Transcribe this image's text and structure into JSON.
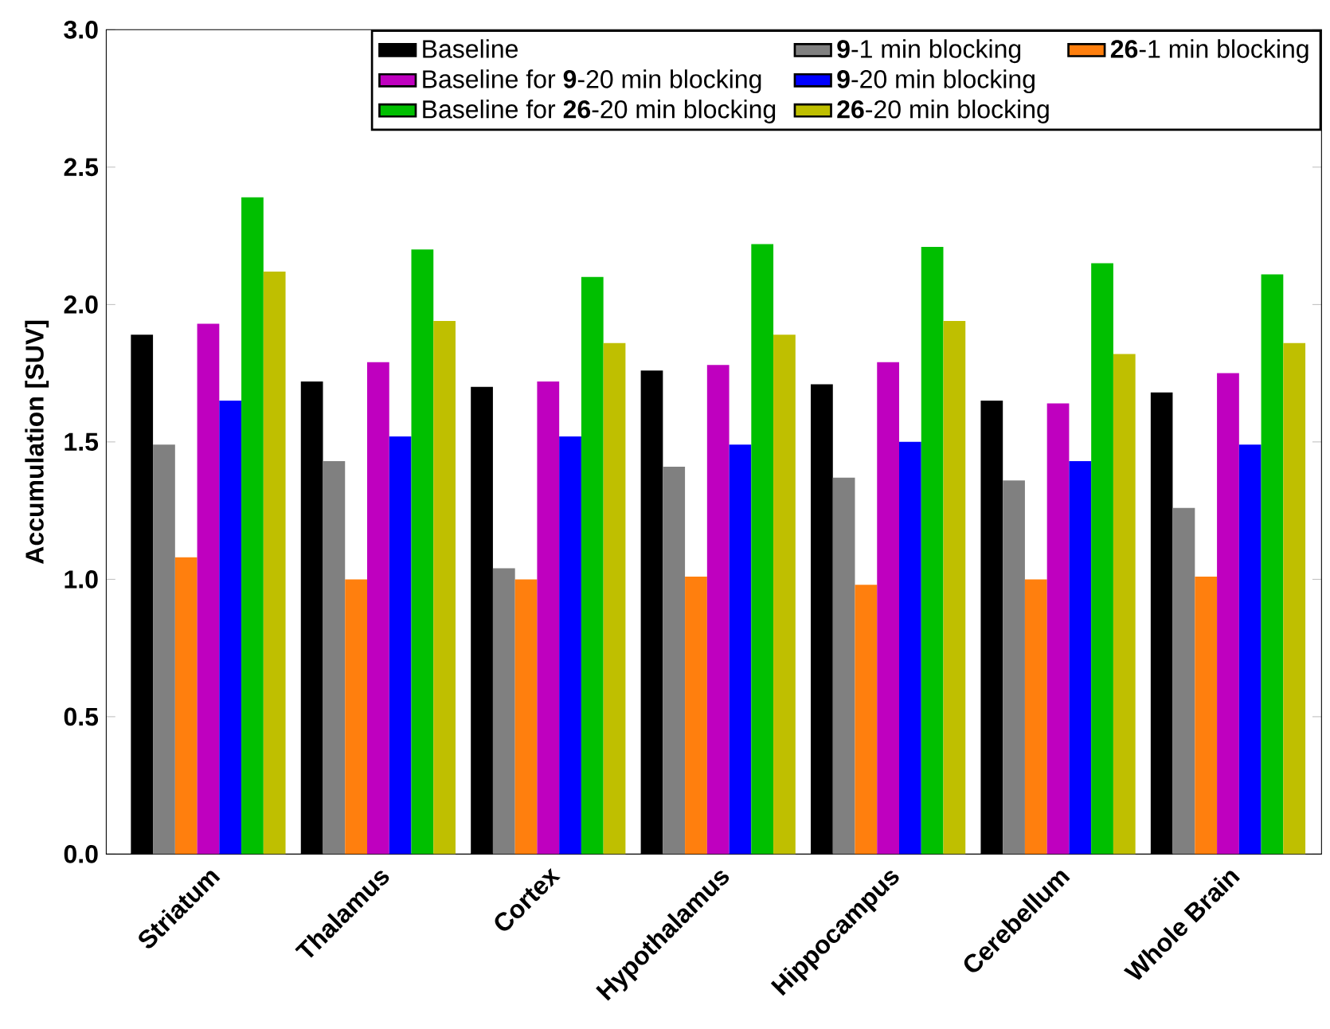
{
  "chart_data": {
    "type": "bar",
    "ylabel": "Accumulation [SUV]",
    "categories": [
      "Striatum",
      "Thalamus",
      "Cortex",
      "Hypothalamus",
      "Hippocampus",
      "Cerebellum",
      "Whole Brain"
    ],
    "series": [
      {
        "name": "Baseline",
        "color": "#000000",
        "values": [
          1.89,
          1.72,
          1.7,
          1.76,
          1.71,
          1.65,
          1.68
        ]
      },
      {
        "name": "**9**-1 min blocking",
        "color": "#808080",
        "values": [
          1.49,
          1.43,
          1.04,
          1.41,
          1.37,
          1.36,
          1.26
        ]
      },
      {
        "name": "**26**-1 min blocking",
        "color": "#ff7f0e",
        "values": [
          1.08,
          1.0,
          1.0,
          1.01,
          0.98,
          1.0,
          1.01
        ]
      },
      {
        "name": "Baseline for **9**-20 min blocking",
        "color": "#bf00bf",
        "values": [
          1.93,
          1.79,
          1.72,
          1.78,
          1.79,
          1.64,
          1.75
        ]
      },
      {
        "name": "**9**-20 min blocking",
        "color": "#0000ff",
        "values": [
          1.65,
          1.52,
          1.52,
          1.49,
          1.5,
          1.43,
          1.49
        ]
      },
      {
        "name": "Baseline for **26**-20 min blocking",
        "color": "#00bf00",
        "values": [
          2.39,
          2.2,
          2.1,
          2.22,
          2.21,
          2.15,
          2.11
        ]
      },
      {
        "name": "**26**-20 min blocking",
        "color": "#bfbf00",
        "values": [
          2.12,
          1.94,
          1.86,
          1.89,
          1.94,
          1.82,
          1.86
        ]
      }
    ],
    "ylim": [
      0,
      3
    ],
    "yticks": [
      {
        "value": 0,
        "label": "0.0"
      },
      0.5,
      {
        "value": 1,
        "label": "1.0"
      },
      1.5,
      {
        "value": 2,
        "label": "2.0"
      },
      2.5,
      {
        "value": 3,
        "label": "3.0"
      }
    ],
    "legend": "top right"
  }
}
